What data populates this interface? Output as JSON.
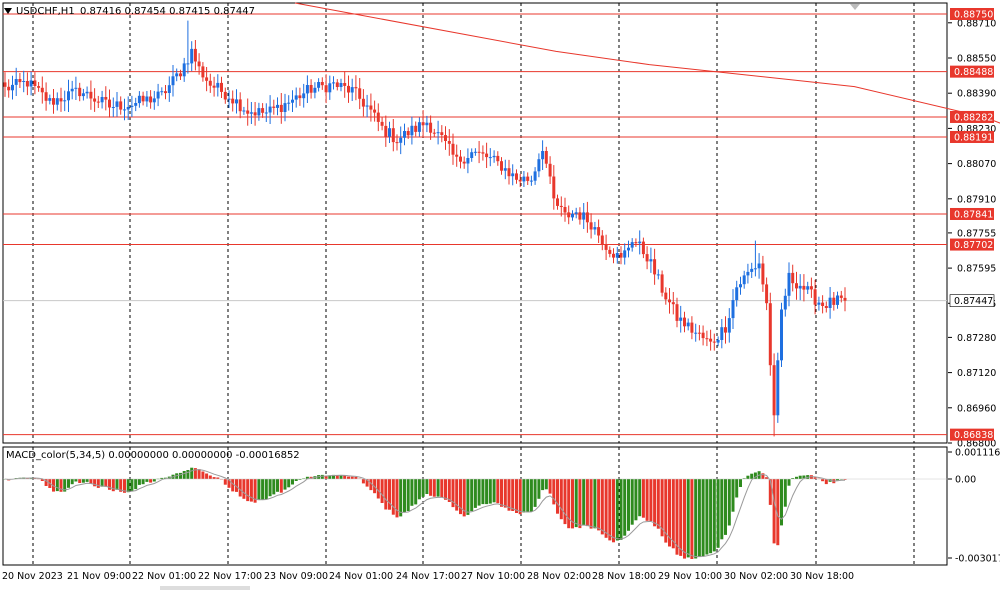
{
  "header": {
    "symbol": "USDCHF,H1",
    "ohlc": "0.87416 0.87454 0.87415 0.87447"
  },
  "macd": {
    "label": "MACD_color(5,34,5) 0.00000000 0.00000000 -0.00016852"
  },
  "colors": {
    "bull": "#1e6fe0",
    "bear": "#e8372c",
    "ma": "#e8372c",
    "hline": "#e8372c",
    "grid": "#000000",
    "macd_pos": "#2e8b1e",
    "macd_neg": "#e8372c",
    "signal": "#9a9a9a"
  },
  "chart_data": [
    {
      "type": "candlestick",
      "series_name": "USDCHF,H1",
      "y_range": [
        0.868,
        0.888
      ],
      "y_ticks": [
        "0.88710",
        "0.88550",
        "0.88390",
        "0.88230",
        "0.88070",
        "0.87910",
        "0.87755",
        "0.87595",
        "0.87435",
        "0.87280",
        "0.87120",
        "0.86960",
        "0.86800"
      ],
      "x_tick_labels": [
        "20 Nov 2023",
        "21 Nov 09:00",
        "22 Nov 01:00",
        "22 Nov 17:00",
        "23 Nov 09:00",
        "24 Nov 01:00",
        "24 Nov 17:00",
        "27 Nov 10:00",
        "28 Nov 02:00",
        "28 Nov 18:00",
        "29 Nov 10:00",
        "30 Nov 02:00",
        "30 Nov 18:00"
      ],
      "horizontal_levels": [
        "0.88750",
        "0.88488",
        "0.88282",
        "0.88191",
        "0.87841",
        "0.87702",
        "0.86838"
      ],
      "current_price": "0.87447",
      "moving_average": [
        [
          0.888,
          0
        ],
        [
          0.8858,
          70
        ],
        [
          0.8852,
          95
        ],
        [
          0.8842,
          150
        ],
        [
          0.8828,
          185
        ],
        [
          0.8812,
          210
        ],
        [
          0.8801,
          240
        ]
      ],
      "anchors": [
        [
          0,
          0.8841
        ],
        [
          6,
          0.8844
        ],
        [
          12,
          0.8835
        ],
        [
          20,
          0.884
        ],
        [
          28,
          0.8833
        ],
        [
          34,
          0.8834
        ],
        [
          42,
          0.8838
        ],
        [
          47,
          0.8849
        ],
        [
          50,
          0.8858
        ],
        [
          52,
          0.885
        ],
        [
          55,
          0.8843
        ],
        [
          60,
          0.8838
        ],
        [
          65,
          0.8831
        ],
        [
          70,
          0.883
        ],
        [
          76,
          0.8835
        ],
        [
          82,
          0.8841
        ],
        [
          88,
          0.8843
        ],
        [
          93,
          0.884
        ],
        [
          97,
          0.8833
        ],
        [
          101,
          0.8823
        ],
        [
          105,
          0.8818
        ],
        [
          109,
          0.8822
        ],
        [
          113,
          0.8826
        ],
        [
          117,
          0.8818
        ],
        [
          121,
          0.8808
        ],
        [
          125,
          0.8812
        ],
        [
          129,
          0.881
        ],
        [
          133,
          0.8806
        ],
        [
          137,
          0.88
        ],
        [
          141,
          0.88
        ],
        [
          144,
          0.8815
        ],
        [
          147,
          0.879
        ],
        [
          150,
          0.8783
        ],
        [
          153,
          0.8785
        ],
        [
          157,
          0.878
        ],
        [
          161,
          0.877
        ],
        [
          165,
          0.8763
        ],
        [
          168,
          0.8773
        ],
        [
          172,
          0.8765
        ],
        [
          176,
          0.875
        ],
        [
          180,
          0.8737
        ],
        [
          185,
          0.873
        ],
        [
          189,
          0.8725
        ],
        [
          193,
          0.8733
        ],
        [
          196,
          0.8751
        ],
        [
          199,
          0.8757
        ],
        [
          202,
          0.8762
        ],
        [
          204,
          0.8743
        ],
        [
          206,
          0.869
        ],
        [
          208,
          0.874
        ],
        [
          210,
          0.8755
        ],
        [
          213,
          0.8752
        ],
        [
          216,
          0.8747
        ],
        [
          219,
          0.8743
        ],
        [
          222,
          0.8744
        ],
        [
          225,
          0.8745
        ]
      ]
    },
    {
      "type": "bar",
      "series_name": "MACD_color(5,34,5)",
      "y_range": [
        -0.00035,
        0.00013
      ],
      "y_ticks": [
        "0.0011168",
        "0.00",
        "-0.0030171"
      ]
    }
  ]
}
